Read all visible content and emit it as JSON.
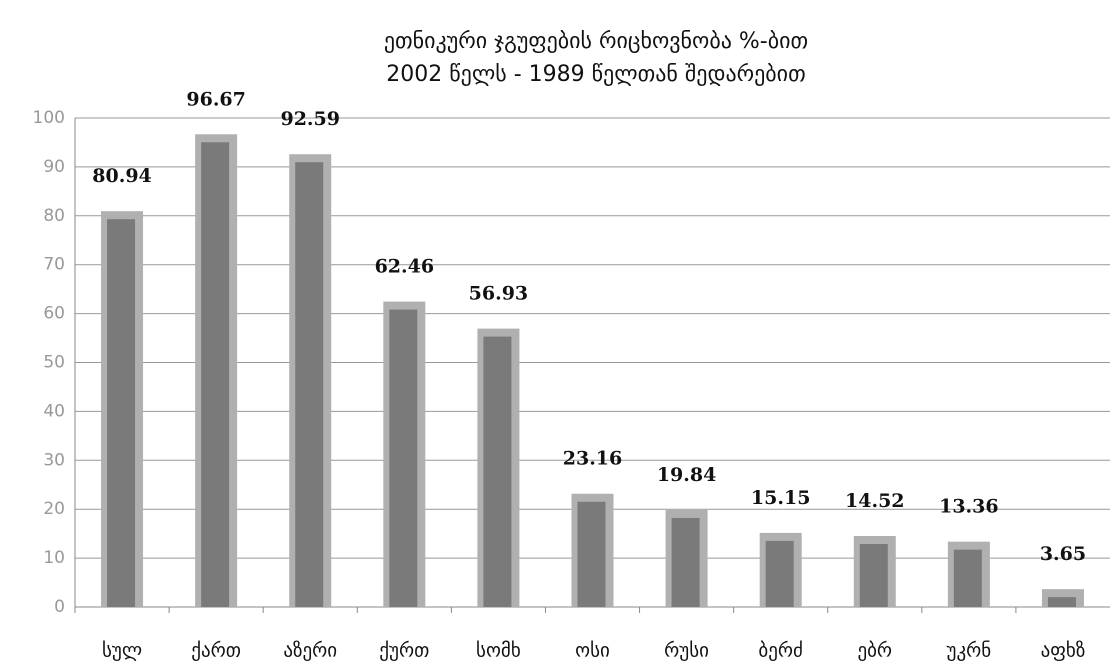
{
  "chart_data": {
    "type": "bar",
    "title": "ეთნიკური ჯგუფების რიცხოვნობა %-ბით",
    "subtitle": "2002 წელს - 1989 წელთან შედარებით",
    "categories": [
      "სულ",
      "ქართ",
      "აზერი",
      "ქურთ",
      "სომხ",
      "ოსი",
      "რუსი",
      "ბერძ",
      "ებრ",
      "უკრნ",
      "აფხზ"
    ],
    "values": [
      80.94,
      96.67,
      92.59,
      62.46,
      56.93,
      23.16,
      19.84,
      15.15,
      14.52,
      13.36,
      3.65
    ],
    "color": "#7a7a7a",
    "edge_color": "#b0b0b0",
    "ylim": [
      0,
      100
    ],
    "yticks": [
      0,
      10,
      20,
      30,
      40,
      50,
      60,
      70,
      80,
      90,
      100
    ],
    "grid": true
  }
}
